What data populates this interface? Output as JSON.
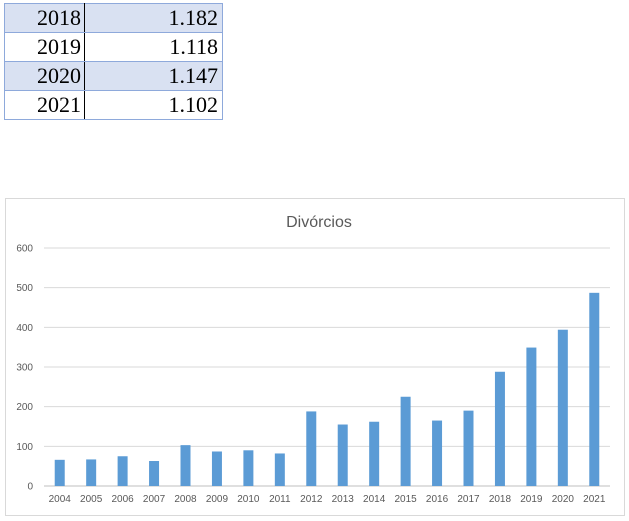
{
  "table": {
    "rows": [
      {
        "year": "2018",
        "value": "1.182"
      },
      {
        "year": "2019",
        "value": "1.118"
      },
      {
        "year": "2020",
        "value": "1.147"
      },
      {
        "year": "2021",
        "value": "1.102"
      }
    ]
  },
  "chart_data": {
    "type": "bar",
    "title": "Divórcios",
    "xlabel": "",
    "ylabel": "",
    "categories": [
      "2004",
      "2005",
      "2006",
      "2007",
      "2008",
      "2009",
      "2010",
      "2011",
      "2012",
      "2013",
      "2014",
      "2015",
      "2016",
      "2017",
      "2018",
      "2019",
      "2020",
      "2021"
    ],
    "values": [
      66,
      67,
      75,
      63,
      103,
      87,
      90,
      82,
      188,
      155,
      162,
      225,
      165,
      190,
      288,
      349,
      394,
      487
    ],
    "ylim": [
      0,
      600
    ],
    "yticks": [
      0,
      100,
      200,
      300,
      400,
      500,
      600
    ],
    "grid": true,
    "legend": "none",
    "bar_color": "#5b9bd5"
  }
}
